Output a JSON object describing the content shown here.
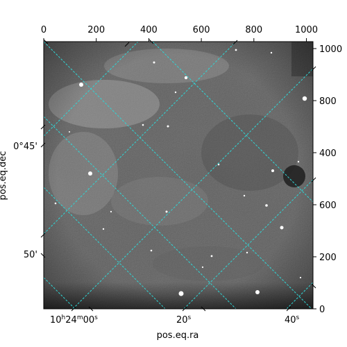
{
  "figure": {
    "xlabel": "pos.eq.ra",
    "ylabel": "pos.eq.dec",
    "top_ticks": [
      "0",
      "200",
      "400",
      "600",
      "800",
      "1000"
    ],
    "right_ticks": [
      "0",
      "200",
      "400",
      "600",
      "800",
      "1000"
    ],
    "ra_ticks": {
      "t1": {
        "main": "10",
        "h": "h",
        "mid": "24",
        "m": "m",
        "sec": "00",
        "s": "s"
      },
      "t2": {
        "main": "20",
        "s": "s"
      },
      "t3": {
        "main": "40",
        "s": "s"
      }
    },
    "dec_ticks": [
      "0°45'",
      "50'"
    ],
    "grid_color": "#2fd6d6"
  }
}
